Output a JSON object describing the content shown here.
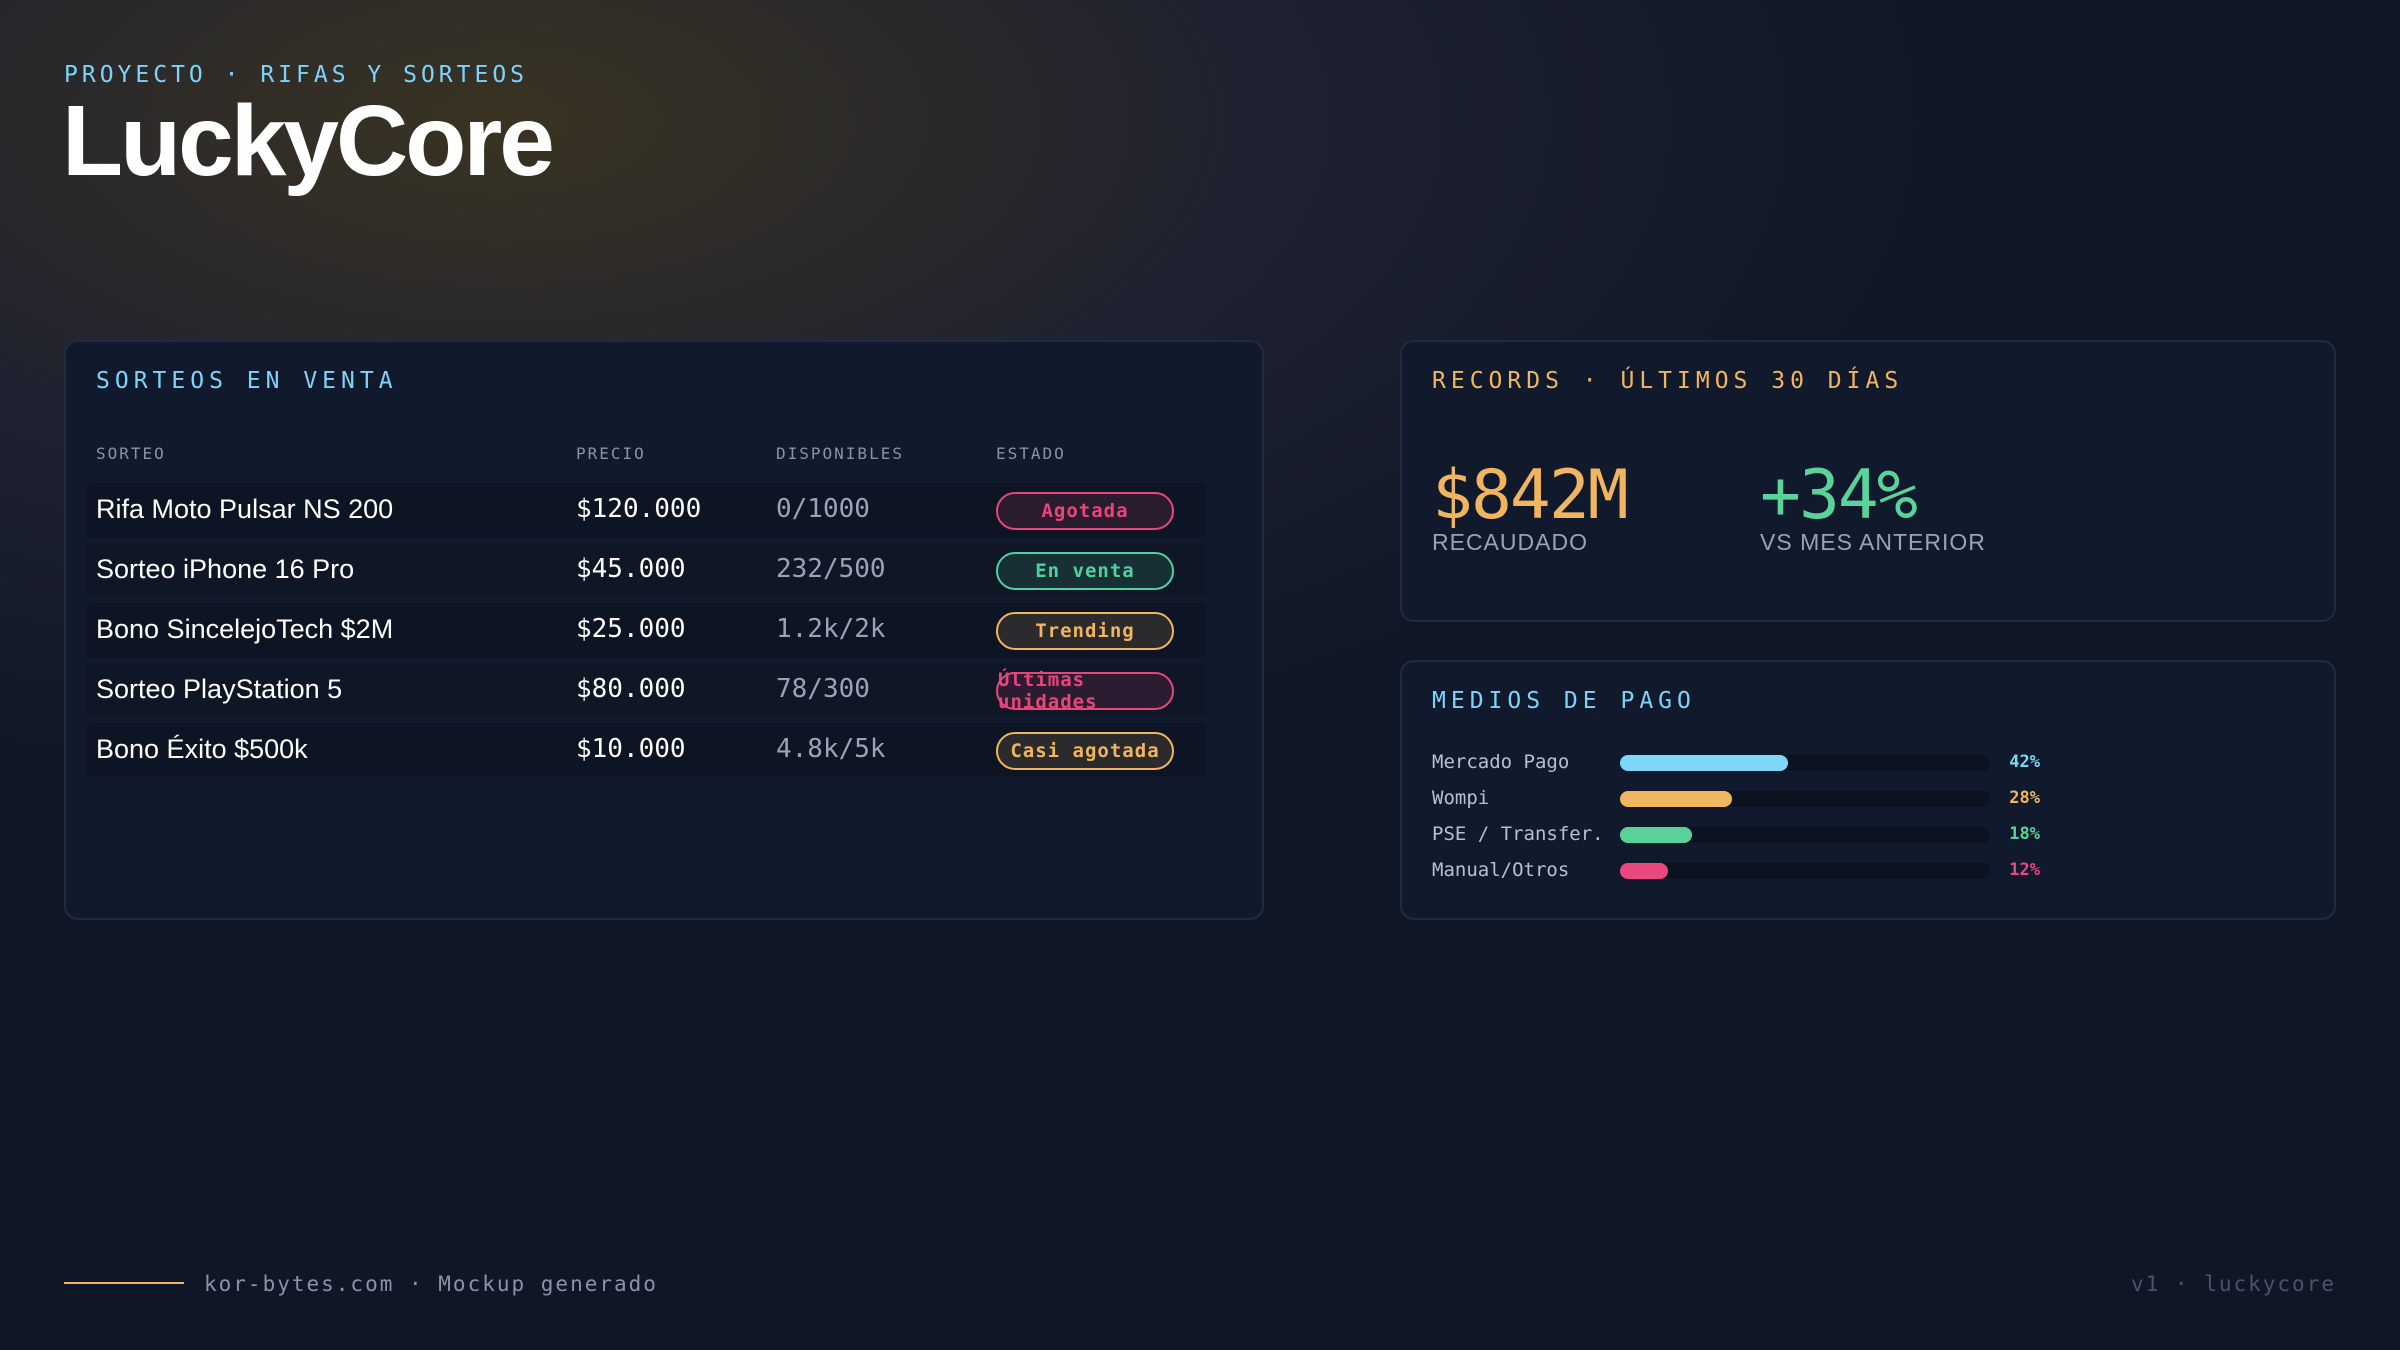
{
  "header": {
    "eyebrow": "PROYECTO · RIFAS Y SORTEOS",
    "title": "LuckyCore"
  },
  "raffles": {
    "title": "SORTEOS EN VENTA",
    "columns": [
      "SORTEO",
      "PRECIO",
      "DISPONIBLES",
      "ESTADO"
    ],
    "rows": [
      {
        "name": "Rifa Moto Pulsar NS 200",
        "price": "$120.000",
        "available": "0/1000",
        "status": {
          "label": "Agotada",
          "color": "#e8457a"
        }
      },
      {
        "name": "Sorteo iPhone 16 Pro",
        "price": "$45.000",
        "available": "232/500",
        "status": {
          "label": "En venta",
          "color": "#4fd1a0"
        }
      },
      {
        "name": "Bono SincelejoTech $2M",
        "price": "$25.000",
        "available": "1.2k/2k",
        "status": {
          "label": "Trending",
          "color": "#f2b55f"
        }
      },
      {
        "name": "Sorteo PlayStation 5",
        "price": "$80.000",
        "available": "78/300",
        "status": {
          "label": "Últimas unidades",
          "color": "#e8457a"
        }
      },
      {
        "name": "Bono Éxito $500k",
        "price": "$10.000",
        "available": "4.8k/5k",
        "status": {
          "label": "Casi agotada",
          "color": "#f2b55f"
        }
      }
    ]
  },
  "records": {
    "title": "RECORDS · ÚLTIMOS 30 DÍAS",
    "metrics": [
      {
        "value": "$842M",
        "label": "RECAUDADO",
        "color": "#f2b55f"
      },
      {
        "value": "+34%",
        "label": "VS MES ANTERIOR",
        "color": "#5ad39a"
      }
    ]
  },
  "payments": {
    "title": "MEDIOS DE PAGO",
    "items": [
      {
        "name": "Mercado Pago",
        "value": 42,
        "value_label": "42%",
        "color": "#7dd8f8"
      },
      {
        "name": "Wompi",
        "value": 28,
        "value_label": "28%",
        "color": "#f2b55f"
      },
      {
        "name": "PSE / Transfer.",
        "value": 18,
        "value_label": "18%",
        "color": "#5ad39a"
      },
      {
        "name": "Manual/Otros",
        "value": 12,
        "value_label": "12%",
        "color": "#ec4880"
      }
    ]
  },
  "footer": {
    "left": "kor-bytes.com · Mockup generado",
    "right": "v1 · luckycore"
  }
}
